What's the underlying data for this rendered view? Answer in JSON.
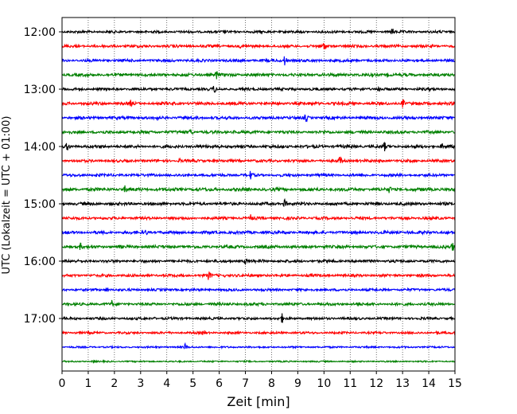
{
  "chart_data": {
    "type": "line",
    "subtype": "helicorder",
    "xlabel": "Zeit  [min]",
    "ylabel": "UTC (Lokalzeit = UTC + 01:00)",
    "xlim": [
      0,
      15
    ],
    "x_ticks": [
      0,
      1,
      2,
      3,
      4,
      5,
      6,
      7,
      8,
      9,
      10,
      11,
      12,
      13,
      14,
      15
    ],
    "x_grid": "dotted vertical",
    "row_interval_min": 15,
    "y_ticks": [
      "12:00",
      "13:00",
      "14:00",
      "15:00",
      "16:00",
      "17:00"
    ],
    "trace_colors": [
      "#000000",
      "#ff0000",
      "#0000ff",
      "#008000"
    ],
    "traces": [
      {
        "start": "12:00",
        "color": "#000000",
        "amplitude": 0.2,
        "events": [
          [
            6.2,
            0.45
          ],
          [
            12.6,
            0.75
          ]
        ]
      },
      {
        "start": "12:15",
        "color": "#ff0000",
        "amplitude": 0.22,
        "events": [
          [
            6.8,
            0.35
          ],
          [
            10.0,
            0.9
          ]
        ]
      },
      {
        "start": "12:30",
        "color": "#0000ff",
        "amplitude": 0.22,
        "events": [
          [
            1.3,
            0.35
          ],
          [
            2.5,
            0.3
          ],
          [
            8.5,
            0.9
          ],
          [
            12.2,
            0.3
          ]
        ]
      },
      {
        "start": "12:45",
        "color": "#008000",
        "amplitude": 0.24,
        "events": [
          [
            5.9,
            0.9
          ],
          [
            12.4,
            0.5
          ]
        ]
      },
      {
        "start": "13:00",
        "color": "#000000",
        "amplitude": 0.22,
        "events": [
          [
            5.8,
            0.85
          ],
          [
            12.1,
            0.7
          ]
        ]
      },
      {
        "start": "13:15",
        "color": "#ff0000",
        "amplitude": 0.24,
        "events": [
          [
            2.6,
            0.75
          ],
          [
            8.1,
            0.4
          ],
          [
            13.0,
            0.8
          ]
        ]
      },
      {
        "start": "13:30",
        "color": "#0000ff",
        "amplitude": 0.24,
        "events": [
          [
            3.6,
            0.6
          ],
          [
            9.3,
            0.85
          ]
        ]
      },
      {
        "start": "13:45",
        "color": "#008000",
        "amplitude": 0.24,
        "events": [
          [
            4.9,
            0.7
          ],
          [
            6.6,
            0.4
          ],
          [
            10.0,
            0.4
          ]
        ]
      },
      {
        "start": "14:00",
        "color": "#000000",
        "amplitude": 0.24,
        "events": [
          [
            0.2,
            0.9
          ],
          [
            6.0,
            0.45
          ],
          [
            12.3,
            0.9
          ],
          [
            14.5,
            0.6
          ]
        ]
      },
      {
        "start": "14:15",
        "color": "#ff0000",
        "amplitude": 0.22,
        "events": [
          [
            4.5,
            0.45
          ],
          [
            10.6,
            0.9
          ]
        ]
      },
      {
        "start": "14:30",
        "color": "#0000ff",
        "amplitude": 0.22,
        "events": [
          [
            1.3,
            0.4
          ],
          [
            7.2,
            0.85
          ]
        ]
      },
      {
        "start": "14:45",
        "color": "#008000",
        "amplitude": 0.26,
        "events": [
          [
            2.4,
            0.7
          ],
          [
            12.5,
            0.75
          ]
        ]
      },
      {
        "start": "15:00",
        "color": "#000000",
        "amplitude": 0.24,
        "events": [
          [
            2.5,
            0.35
          ],
          [
            8.5,
            0.85
          ]
        ]
      },
      {
        "start": "15:15",
        "color": "#ff0000",
        "amplitude": 0.22,
        "events": [
          [
            7.2,
            0.75
          ]
        ]
      },
      {
        "start": "15:30",
        "color": "#0000ff",
        "amplitude": 0.24,
        "events": [
          [
            3.2,
            0.6
          ],
          [
            13.2,
            0.35
          ]
        ]
      },
      {
        "start": "15:45",
        "color": "#008000",
        "amplitude": 0.24,
        "events": [
          [
            0.7,
            0.7
          ],
          [
            10.0,
            0.4
          ],
          [
            14.9,
            0.9
          ]
        ]
      },
      {
        "start": "16:00",
        "color": "#000000",
        "amplitude": 0.22,
        "events": [
          [
            7.0,
            0.6
          ],
          [
            7.6,
            0.55
          ]
        ]
      },
      {
        "start": "16:15",
        "color": "#ff0000",
        "amplitude": 0.22,
        "events": [
          [
            5.6,
            0.9
          ],
          [
            6.2,
            0.3
          ]
        ]
      },
      {
        "start": "16:30",
        "color": "#0000ff",
        "amplitude": 0.2,
        "events": [
          [
            1.7,
            0.55
          ],
          [
            4.9,
            0.3
          ]
        ]
      },
      {
        "start": "16:45",
        "color": "#008000",
        "amplitude": 0.22,
        "events": [
          [
            1.9,
            0.7
          ],
          [
            11.3,
            0.55
          ]
        ]
      },
      {
        "start": "17:00",
        "color": "#000000",
        "amplitude": 0.2,
        "events": [
          [
            3.5,
            0.35
          ],
          [
            8.4,
            0.85
          ]
        ]
      },
      {
        "start": "17:15",
        "color": "#ff0000",
        "amplitude": 0.18,
        "events": [
          [
            0.5,
            0.3
          ],
          [
            5.4,
            0.7
          ],
          [
            14.3,
            0.4
          ]
        ]
      },
      {
        "start": "17:30",
        "color": "#0000ff",
        "amplitude": 0.14,
        "events": [
          [
            4.7,
            0.65
          ]
        ]
      },
      {
        "start": "17:45",
        "color": "#008000",
        "amplitude": 0.12,
        "events": [
          [
            1.2,
            0.35
          ]
        ]
      }
    ]
  }
}
